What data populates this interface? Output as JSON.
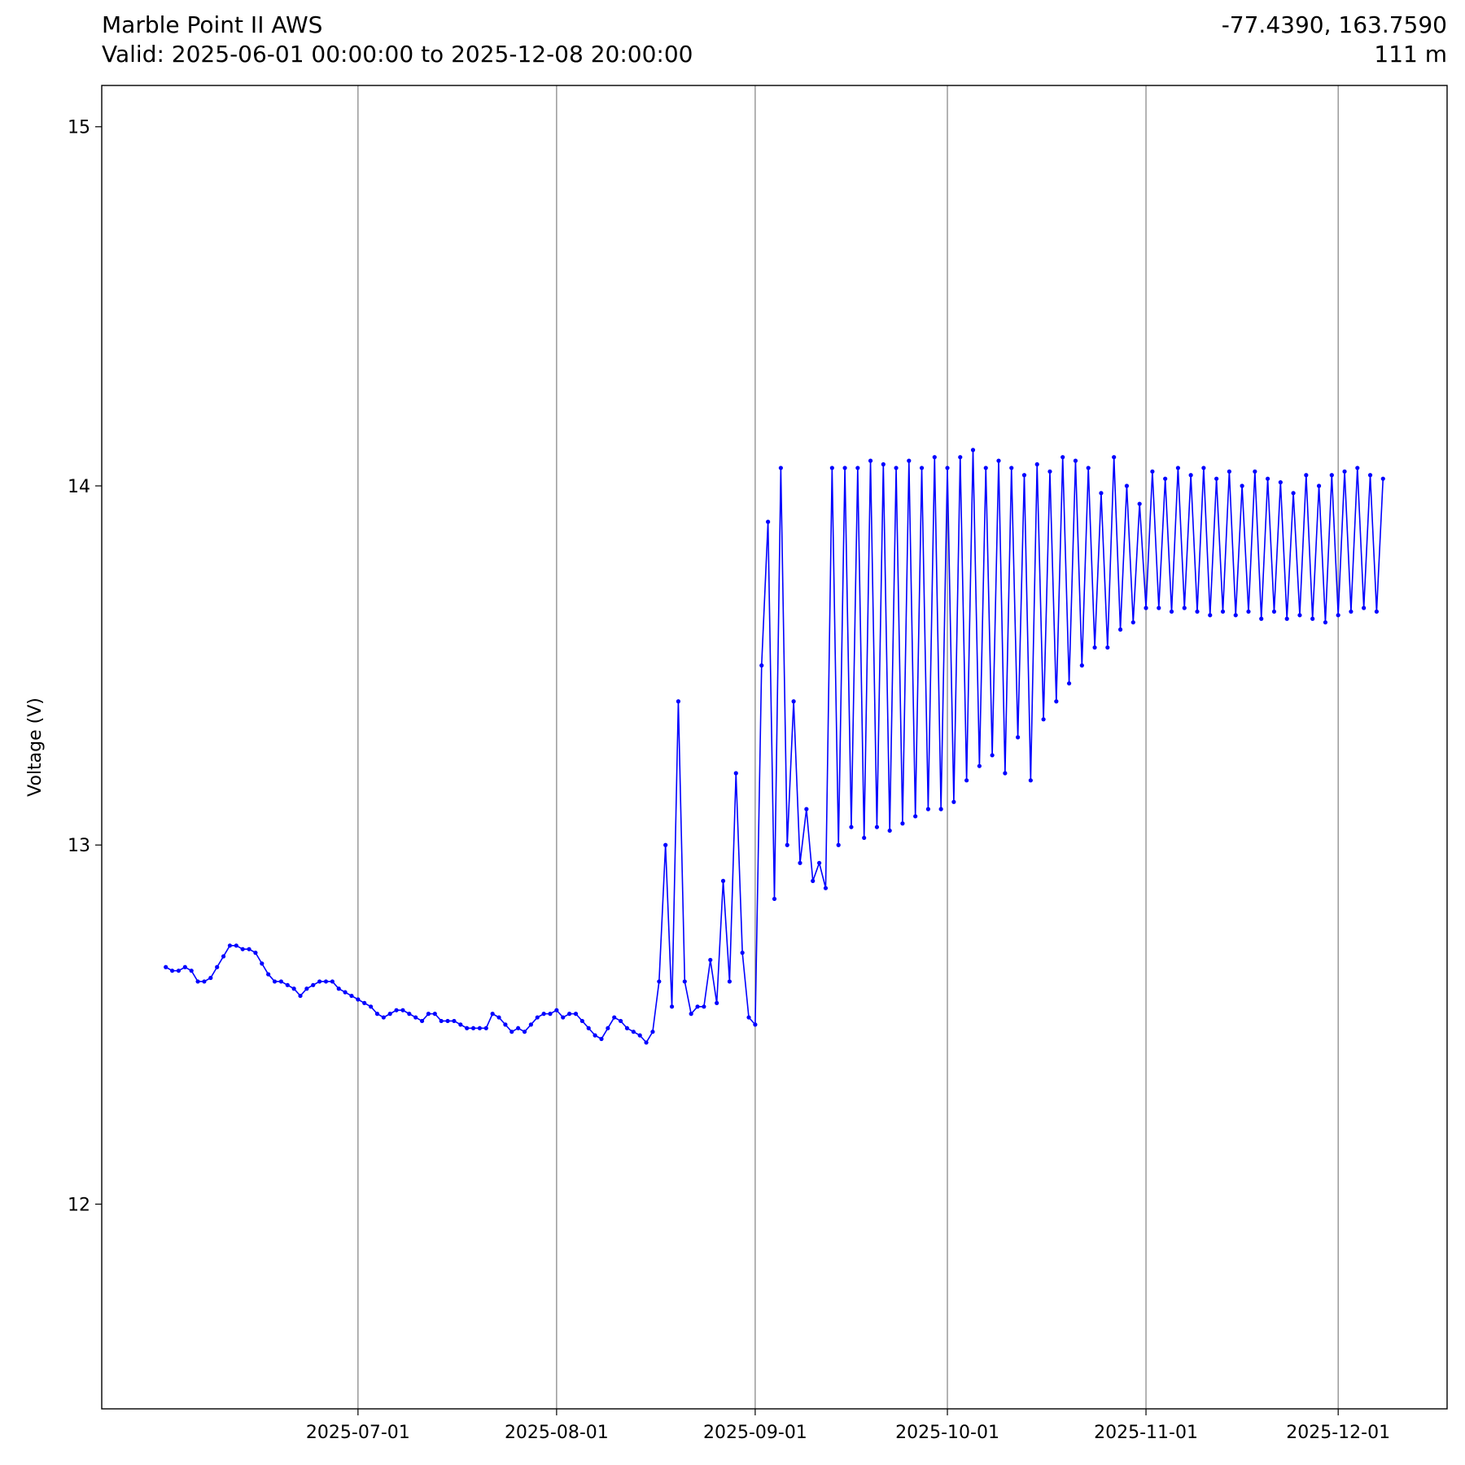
{
  "chart_data": {
    "type": "line",
    "title": "Marble Point II AWS",
    "subtitle": "Valid: 2025-06-01 00:00:00 to 2025-12-08 20:00:00",
    "location": "-77.4390, 163.7590",
    "elevation": "111 m",
    "ylabel": "Voltage (V)",
    "xlim": [
      "2025-05-22",
      "2025-12-18"
    ],
    "xticks": [
      "2025-07-01",
      "2025-08-01",
      "2025-09-01",
      "2025-10-01",
      "2025-11-01",
      "2025-12-01"
    ],
    "ylim": [
      11.43,
      15.115
    ],
    "yticks": [
      12,
      13,
      14,
      15
    ],
    "grid": "x",
    "x": [
      "2025-06-01",
      "2025-06-02",
      "2025-06-03",
      "2025-06-04",
      "2025-06-05",
      "2025-06-06",
      "2025-06-07",
      "2025-06-08",
      "2025-06-09",
      "2025-06-10",
      "2025-06-11",
      "2025-06-12",
      "2025-06-13",
      "2025-06-14",
      "2025-06-15",
      "2025-06-16",
      "2025-06-17",
      "2025-06-18",
      "2025-06-19",
      "2025-06-20",
      "2025-06-21",
      "2025-06-22",
      "2025-06-23",
      "2025-06-24",
      "2025-06-25",
      "2025-06-26",
      "2025-06-27",
      "2025-06-28",
      "2025-06-29",
      "2025-06-30",
      "2025-07-01",
      "2025-07-02",
      "2025-07-03",
      "2025-07-04",
      "2025-07-05",
      "2025-07-06",
      "2025-07-07",
      "2025-07-08",
      "2025-07-09",
      "2025-07-10",
      "2025-07-11",
      "2025-07-12",
      "2025-07-13",
      "2025-07-14",
      "2025-07-15",
      "2025-07-16",
      "2025-07-17",
      "2025-07-18",
      "2025-07-19",
      "2025-07-20",
      "2025-07-21",
      "2025-07-22",
      "2025-07-23",
      "2025-07-24",
      "2025-07-25",
      "2025-07-26",
      "2025-07-27",
      "2025-07-28",
      "2025-07-29",
      "2025-07-30",
      "2025-07-31",
      "2025-08-01",
      "2025-08-02",
      "2025-08-03",
      "2025-08-04",
      "2025-08-05",
      "2025-08-06",
      "2025-08-07",
      "2025-08-08",
      "2025-08-09",
      "2025-08-10",
      "2025-08-11",
      "2025-08-12",
      "2025-08-13",
      "2025-08-14",
      "2025-08-15",
      "2025-08-16",
      "2025-08-17",
      "2025-08-18",
      "2025-08-19",
      "2025-08-20",
      "2025-08-21",
      "2025-08-22",
      "2025-08-23",
      "2025-08-24",
      "2025-08-25",
      "2025-08-26",
      "2025-08-27",
      "2025-08-28",
      "2025-08-29",
      "2025-08-30",
      "2025-08-31",
      "2025-09-01",
      "2025-09-02",
      "2025-09-03",
      "2025-09-04",
      "2025-09-05",
      "2025-09-06",
      "2025-09-07",
      "2025-09-08",
      "2025-09-09",
      "2025-09-10",
      "2025-09-11",
      "2025-09-12",
      "2025-09-13",
      "2025-09-14",
      "2025-09-15",
      "2025-09-16",
      "2025-09-17",
      "2025-09-18",
      "2025-09-19",
      "2025-09-20",
      "2025-09-21",
      "2025-09-22",
      "2025-09-23",
      "2025-09-24",
      "2025-09-25",
      "2025-09-26",
      "2025-09-27",
      "2025-09-28",
      "2025-09-29",
      "2025-09-30",
      "2025-10-01",
      "2025-10-02",
      "2025-10-03",
      "2025-10-04",
      "2025-10-05",
      "2025-10-06",
      "2025-10-07",
      "2025-10-08",
      "2025-10-09",
      "2025-10-10",
      "2025-10-11",
      "2025-10-12",
      "2025-10-13",
      "2025-10-14",
      "2025-10-15",
      "2025-10-16",
      "2025-10-17",
      "2025-10-18",
      "2025-10-19",
      "2025-10-20",
      "2025-10-21",
      "2025-10-22",
      "2025-10-23",
      "2025-10-24",
      "2025-10-25",
      "2025-10-26",
      "2025-10-27",
      "2025-10-28",
      "2025-10-29",
      "2025-10-30",
      "2025-10-31",
      "2025-11-01",
      "2025-11-02",
      "2025-11-03",
      "2025-11-04",
      "2025-11-05",
      "2025-11-06",
      "2025-11-07",
      "2025-11-08",
      "2025-11-09",
      "2025-11-10",
      "2025-11-11",
      "2025-11-12",
      "2025-11-13",
      "2025-11-14",
      "2025-11-15",
      "2025-11-16",
      "2025-11-17",
      "2025-11-18",
      "2025-11-19",
      "2025-11-20",
      "2025-11-21",
      "2025-11-22",
      "2025-11-23",
      "2025-11-24",
      "2025-11-25",
      "2025-11-26",
      "2025-11-27",
      "2025-11-28",
      "2025-11-29",
      "2025-11-30",
      "2025-12-01",
      "2025-12-02",
      "2025-12-03",
      "2025-12-04",
      "2025-12-05",
      "2025-12-06",
      "2025-12-07",
      "2025-12-08"
    ],
    "series": [
      {
        "color": "#0000ff",
        "values": [
          12.66,
          12.65,
          12.65,
          12.66,
          12.65,
          12.62,
          12.62,
          12.63,
          12.66,
          12.69,
          12.72,
          12.72,
          12.71,
          12.71,
          12.7,
          12.67,
          12.64,
          12.62,
          12.62,
          12.61,
          12.6,
          12.58,
          12.6,
          12.61,
          12.62,
          12.62,
          12.62,
          12.6,
          12.59,
          12.58,
          12.57,
          12.56,
          12.55,
          12.53,
          12.52,
          12.53,
          12.54,
          12.54,
          12.53,
          12.52,
          12.51,
          12.53,
          12.53,
          12.51,
          12.51,
          12.51,
          12.5,
          12.49,
          12.49,
          12.49,
          12.49,
          12.53,
          12.52,
          12.5,
          12.48,
          12.49,
          12.48,
          12.5,
          12.52,
          12.53,
          12.53,
          12.54,
          12.52,
          12.53,
          12.53,
          12.51,
          12.49,
          12.47,
          12.46,
          12.49,
          12.52,
          12.51,
          12.49,
          12.48,
          12.47,
          12.45,
          12.48,
          12.62,
          13.0,
          12.55,
          13.4,
          12.62,
          12.53,
          12.55,
          12.55,
          12.68,
          12.56,
          12.9,
          12.62,
          13.2,
          12.7,
          12.52,
          12.5,
          13.5,
          13.9,
          12.85,
          14.05,
          13.0,
          13.4,
          12.95,
          13.1,
          12.9,
          12.95,
          12.88,
          14.05,
          13.0,
          14.05,
          13.05,
          14.05,
          13.02,
          14.07,
          13.05,
          14.06,
          13.04,
          14.05,
          13.06,
          14.07,
          13.08,
          14.05,
          13.1,
          14.08,
          13.1,
          14.05,
          13.12,
          14.08,
          13.18,
          14.1,
          13.22,
          14.05,
          13.25,
          14.07,
          13.2,
          14.05,
          13.3,
          14.03,
          13.18,
          14.06,
          13.35,
          14.04,
          13.4,
          14.08,
          13.45,
          14.07,
          13.5,
          14.05,
          13.55,
          13.98,
          13.55,
          14.08,
          13.6,
          14.0,
          13.62,
          13.95,
          13.66,
          14.04,
          13.66,
          14.02,
          13.65,
          14.05,
          13.66,
          14.03,
          13.65,
          14.05,
          13.64,
          14.02,
          13.65,
          14.04,
          13.64,
          14.0,
          13.65,
          14.04,
          13.63,
          14.02,
          13.65,
          14.01,
          13.63,
          13.98,
          13.64,
          14.03,
          13.63,
          14.0,
          13.62,
          14.03,
          13.64,
          14.04,
          13.65,
          14.05,
          13.66,
          14.03,
          13.65,
          14.02
        ]
      }
    ]
  }
}
